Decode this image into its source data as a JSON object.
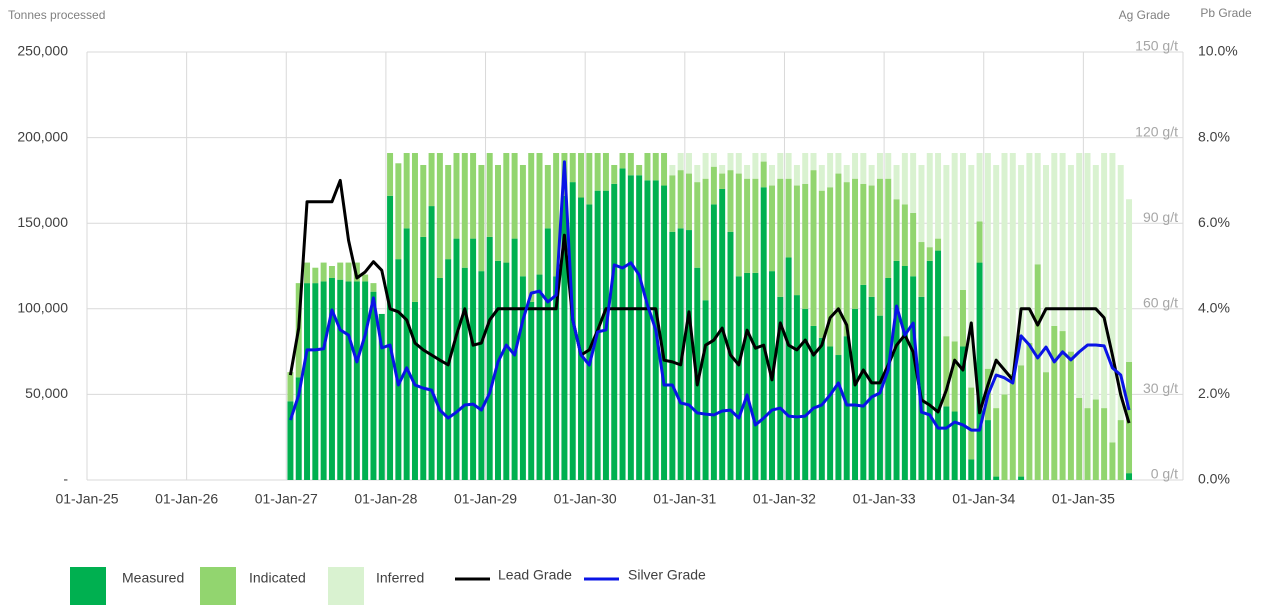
{
  "chart_data": {
    "type": "bar",
    "stacked": true,
    "y_label": "Tonnes processed",
    "y2_label": "Ag Grade",
    "y3_label": "Pb Grade",
    "ylim": [
      0,
      250000
    ],
    "yticks": [
      {
        "value": 0,
        "label": "-"
      },
      {
        "value": 50000,
        "label": "50,000"
      },
      {
        "value": 100000,
        "label": "100,000"
      },
      {
        "value": 150000,
        "label": "150,000"
      },
      {
        "value": 200000,
        "label": "200,000"
      },
      {
        "value": 250000,
        "label": "250,000"
      }
    ],
    "y2lim": [
      0,
      150
    ],
    "y2ticks": [
      {
        "value": 0,
        "label": "0 g/t"
      },
      {
        "value": 30,
        "label": "30 g/t"
      },
      {
        "value": 60,
        "label": "60 g/t"
      },
      {
        "value": 90,
        "label": "90 g/t"
      },
      {
        "value": 120,
        "label": "120 g/t"
      },
      {
        "value": 150,
        "label": "150 g/t"
      }
    ],
    "y3lim": [
      0,
      10
    ],
    "y3ticks": [
      {
        "value": 0,
        "label": "0.0%"
      },
      {
        "value": 2,
        "label": "2.0%"
      },
      {
        "value": 4,
        "label": "4.0%"
      },
      {
        "value": 6,
        "label": "6.0%"
      },
      {
        "value": 8,
        "label": "8.0%"
      },
      {
        "value": 10,
        "label": "10.0%"
      }
    ],
    "grid": true,
    "categories": [
      "01-Jan-25",
      null,
      null,
      null,
      null,
      null,
      null,
      null,
      null,
      null,
      null,
      null,
      "01-Jan-26",
      null,
      null,
      null,
      null,
      null,
      null,
      null,
      null,
      null,
      null,
      null,
      "01-Jan-27",
      null,
      null,
      null,
      null,
      null,
      null,
      null,
      null,
      null,
      null,
      null,
      "01-Jan-28",
      null,
      null,
      null,
      null,
      null,
      null,
      null,
      null,
      null,
      null,
      null,
      "01-Jan-29",
      null,
      null,
      null,
      null,
      null,
      null,
      null,
      null,
      null,
      null,
      null,
      "01-Jan-30",
      null,
      null,
      null,
      null,
      null,
      null,
      null,
      null,
      null,
      null,
      null,
      "01-Jan-31",
      null,
      null,
      null,
      null,
      null,
      null,
      null,
      null,
      null,
      null,
      null,
      "01-Jan-32",
      null,
      null,
      null,
      null,
      null,
      null,
      null,
      null,
      null,
      null,
      null,
      "01-Jan-33",
      null,
      null,
      null,
      null,
      null,
      null,
      null,
      null,
      null,
      null,
      null,
      "01-Jan-34",
      null,
      null,
      null,
      null,
      null,
      null,
      null,
      null,
      null,
      null,
      null,
      "01-Jan-35",
      null,
      null,
      null,
      null,
      null,
      null,
      null,
      null,
      null,
      null,
      null
    ],
    "series": [
      {
        "name": "Measured",
        "type": "bar",
        "color": "#00b050",
        "values": [
          null,
          null,
          null,
          null,
          null,
          null,
          null,
          null,
          null,
          null,
          null,
          null,
          null,
          null,
          null,
          null,
          null,
          null,
          null,
          null,
          null,
          null,
          null,
          null,
          46000,
          60000,
          115000,
          115000,
          116000,
          118000,
          117000,
          116000,
          116000,
          116000,
          110000,
          97000,
          166000,
          129000,
          147000,
          104000,
          142000,
          160000,
          118000,
          129000,
          141000,
          124000,
          141000,
          122000,
          142000,
          128000,
          127000,
          141000,
          119000,
          104000,
          120000,
          147000,
          119000,
          166000,
          174000,
          165000,
          161000,
          169000,
          169000,
          173000,
          182000,
          178000,
          178000,
          175000,
          175000,
          172000,
          145000,
          147000,
          146000,
          124000,
          105000,
          161000,
          170000,
          145000,
          119000,
          121000,
          121000,
          171000,
          122000,
          107000,
          130000,
          108000,
          100000,
          90000,
          83000,
          78000,
          73000,
          84000,
          100000,
          114000,
          107000,
          96000,
          118000,
          128000,
          125000,
          119000,
          107000,
          128000,
          134000,
          43000,
          40000,
          78000,
          12000,
          127000,
          35000,
          2000,
          0,
          0,
          2000,
          0,
          0,
          0,
          0,
          0,
          0,
          0,
          0,
          0,
          0,
          0,
          0,
          4000,
          null,
          null,
          null,
          null,
          null,
          null
        ]
      },
      {
        "name": "Indicated",
        "type": "bar",
        "color": "#92d56f",
        "values": [
          null,
          null,
          null,
          null,
          null,
          null,
          null,
          null,
          null,
          null,
          null,
          null,
          null,
          null,
          null,
          null,
          null,
          null,
          null,
          null,
          null,
          null,
          null,
          null,
          17000,
          55000,
          12000,
          9000,
          11000,
          7000,
          10000,
          11000,
          11000,
          4000,
          5000,
          0,
          25000,
          56000,
          44000,
          87000,
          42000,
          31000,
          73000,
          55000,
          50000,
          67000,
          50000,
          62000,
          49000,
          56000,
          64000,
          50000,
          65000,
          87000,
          71000,
          37000,
          72000,
          25000,
          17000,
          26000,
          30000,
          22000,
          22000,
          11000,
          9000,
          13000,
          6000,
          16000,
          16000,
          19000,
          33000,
          34000,
          33000,
          50000,
          71000,
          22000,
          9000,
          36000,
          60000,
          55000,
          55000,
          15000,
          50000,
          69000,
          46000,
          64000,
          73000,
          91000,
          86000,
          93000,
          106000,
          90000,
          76000,
          59000,
          65000,
          80000,
          58000,
          36000,
          36000,
          37000,
          32000,
          8000,
          7000,
          41000,
          41000,
          33000,
          42000,
          24000,
          30000,
          40000,
          50000,
          62000,
          65000,
          80000,
          126000,
          63000,
          90000,
          87000,
          75000,
          48000,
          42000,
          47000,
          42000,
          22000,
          35000,
          65000,
          null,
          null,
          null,
          null,
          null,
          null
        ]
      },
      {
        "name": "Inferred",
        "type": "bar",
        "color": "#d9f2d0",
        "values": [
          null,
          null,
          null,
          null,
          null,
          null,
          null,
          null,
          null,
          null,
          null,
          null,
          null,
          null,
          null,
          null,
          null,
          null,
          null,
          null,
          null,
          null,
          null,
          null,
          0,
          0,
          0,
          0,
          0,
          0,
          0,
          0,
          0,
          0,
          0,
          0,
          0,
          0,
          0,
          0,
          0,
          0,
          0,
          0,
          0,
          0,
          0,
          0,
          0,
          0,
          0,
          0,
          0,
          0,
          0,
          0,
          0,
          0,
          0,
          0,
          0,
          0,
          0,
          0,
          0,
          0,
          0,
          0,
          0,
          0,
          6000,
          10000,
          12000,
          10000,
          15000,
          8000,
          5000,
          10000,
          12000,
          8000,
          15000,
          5000,
          12000,
          15000,
          15000,
          12000,
          18000,
          10000,
          15000,
          20000,
          12000,
          10000,
          15000,
          18000,
          12000,
          15000,
          15000,
          20000,
          30000,
          35000,
          45000,
          55000,
          50000,
          100000,
          110000,
          80000,
          130000,
          40000,
          126000,
          142000,
          141000,
          129000,
          117000,
          111000,
          65000,
          121000,
          101000,
          104000,
          109000,
          143000,
          149000,
          137000,
          149000,
          169000,
          149000,
          95000,
          null,
          null,
          null,
          null,
          null,
          null
        ]
      },
      {
        "name": "Lead Grade",
        "type": "line",
        "axis": "y3",
        "color": "#000000",
        "values": [
          null,
          null,
          null,
          null,
          null,
          null,
          null,
          null,
          null,
          null,
          null,
          null,
          null,
          null,
          null,
          null,
          null,
          null,
          null,
          null,
          null,
          null,
          null,
          null,
          2.45,
          3.55,
          6.5,
          6.5,
          6.5,
          6.5,
          7.0,
          5.6,
          4.72,
          4.86,
          5.1,
          4.9,
          4.0,
          3.93,
          3.74,
          3.2,
          3.04,
          2.92,
          2.8,
          2.69,
          3.39,
          4.0,
          3.15,
          3.2,
          3.74,
          4.0,
          4.0,
          4.0,
          4.0,
          4.0,
          4.0,
          4.0,
          4.0,
          5.72,
          3.74,
          2.92,
          3.04,
          3.5,
          4.0,
          4.0,
          4.0,
          4.0,
          4.0,
          4.0,
          4.0,
          2.8,
          2.76,
          2.69,
          3.93,
          2.22,
          3.15,
          3.27,
          3.55,
          2.92,
          2.69,
          3.5,
          3.08,
          3.15,
          2.34,
          3.67,
          3.15,
          3.04,
          3.27,
          2.92,
          3.15,
          3.79,
          4.0,
          3.62,
          2.22,
          2.57,
          2.27,
          2.27,
          2.69,
          3.15,
          3.39,
          2.99,
          1.87,
          1.75,
          1.59,
          2.1,
          2.8,
          2.57,
          3.67,
          1.57,
          2.22,
          2.8,
          2.57,
          2.34,
          4.0,
          4.0,
          3.62,
          4.0,
          4.0,
          4.0,
          4.0,
          4.0,
          4.0,
          4.0,
          3.79,
          2.92,
          1.99,
          1.33,
          null,
          null,
          null,
          null,
          null,
          null
        ]
      },
      {
        "name": "Silver Grade",
        "type": "line",
        "axis": "y2",
        "color": "#0a14e6",
        "values": [
          null,
          null,
          null,
          null,
          null,
          null,
          null,
          null,
          null,
          null,
          null,
          null,
          null,
          null,
          null,
          null,
          null,
          null,
          null,
          null,
          null,
          null,
          null,
          null,
          21,
          29.8,
          45.6,
          45.6,
          46,
          59.6,
          52.6,
          50.8,
          41.4,
          50.8,
          63.8,
          46.3,
          47.3,
          33.3,
          39.3,
          33.3,
          32.2,
          31.5,
          24.5,
          21.7,
          23.8,
          26.3,
          26.6,
          24.5,
          30.5,
          41.4,
          47.3,
          43.8,
          56.1,
          65.5,
          66.2,
          62.4,
          64.8,
          111.5,
          56.1,
          43.8,
          40.3,
          51.9,
          52.6,
          75.4,
          74.3,
          76.1,
          71.9,
          61.3,
          52.6,
          33.3,
          33.3,
          27,
          26.3,
          23.5,
          23.1,
          22.8,
          24.2,
          24.5,
          21.7,
          29.8,
          19.3,
          21.7,
          24.5,
          25.2,
          22.4,
          22.1,
          22.4,
          25.2,
          26.3,
          29.8,
          34,
          26.3,
          26.3,
          25.9,
          29.1,
          30.5,
          38.6,
          61,
          50.8,
          55,
          23.8,
          22.8,
          18.2,
          18.2,
          20.3,
          19.3,
          17.5,
          17.5,
          29.8,
          36.8,
          35.8,
          34,
          50.5,
          47.3,
          42.8,
          46.6,
          41.4,
          44.9,
          42.1,
          44.9,
          47.3,
          47.3,
          47,
          39.3,
          36.8,
          24.5,
          null,
          null,
          null,
          null,
          null,
          null
        ]
      }
    ]
  }
}
